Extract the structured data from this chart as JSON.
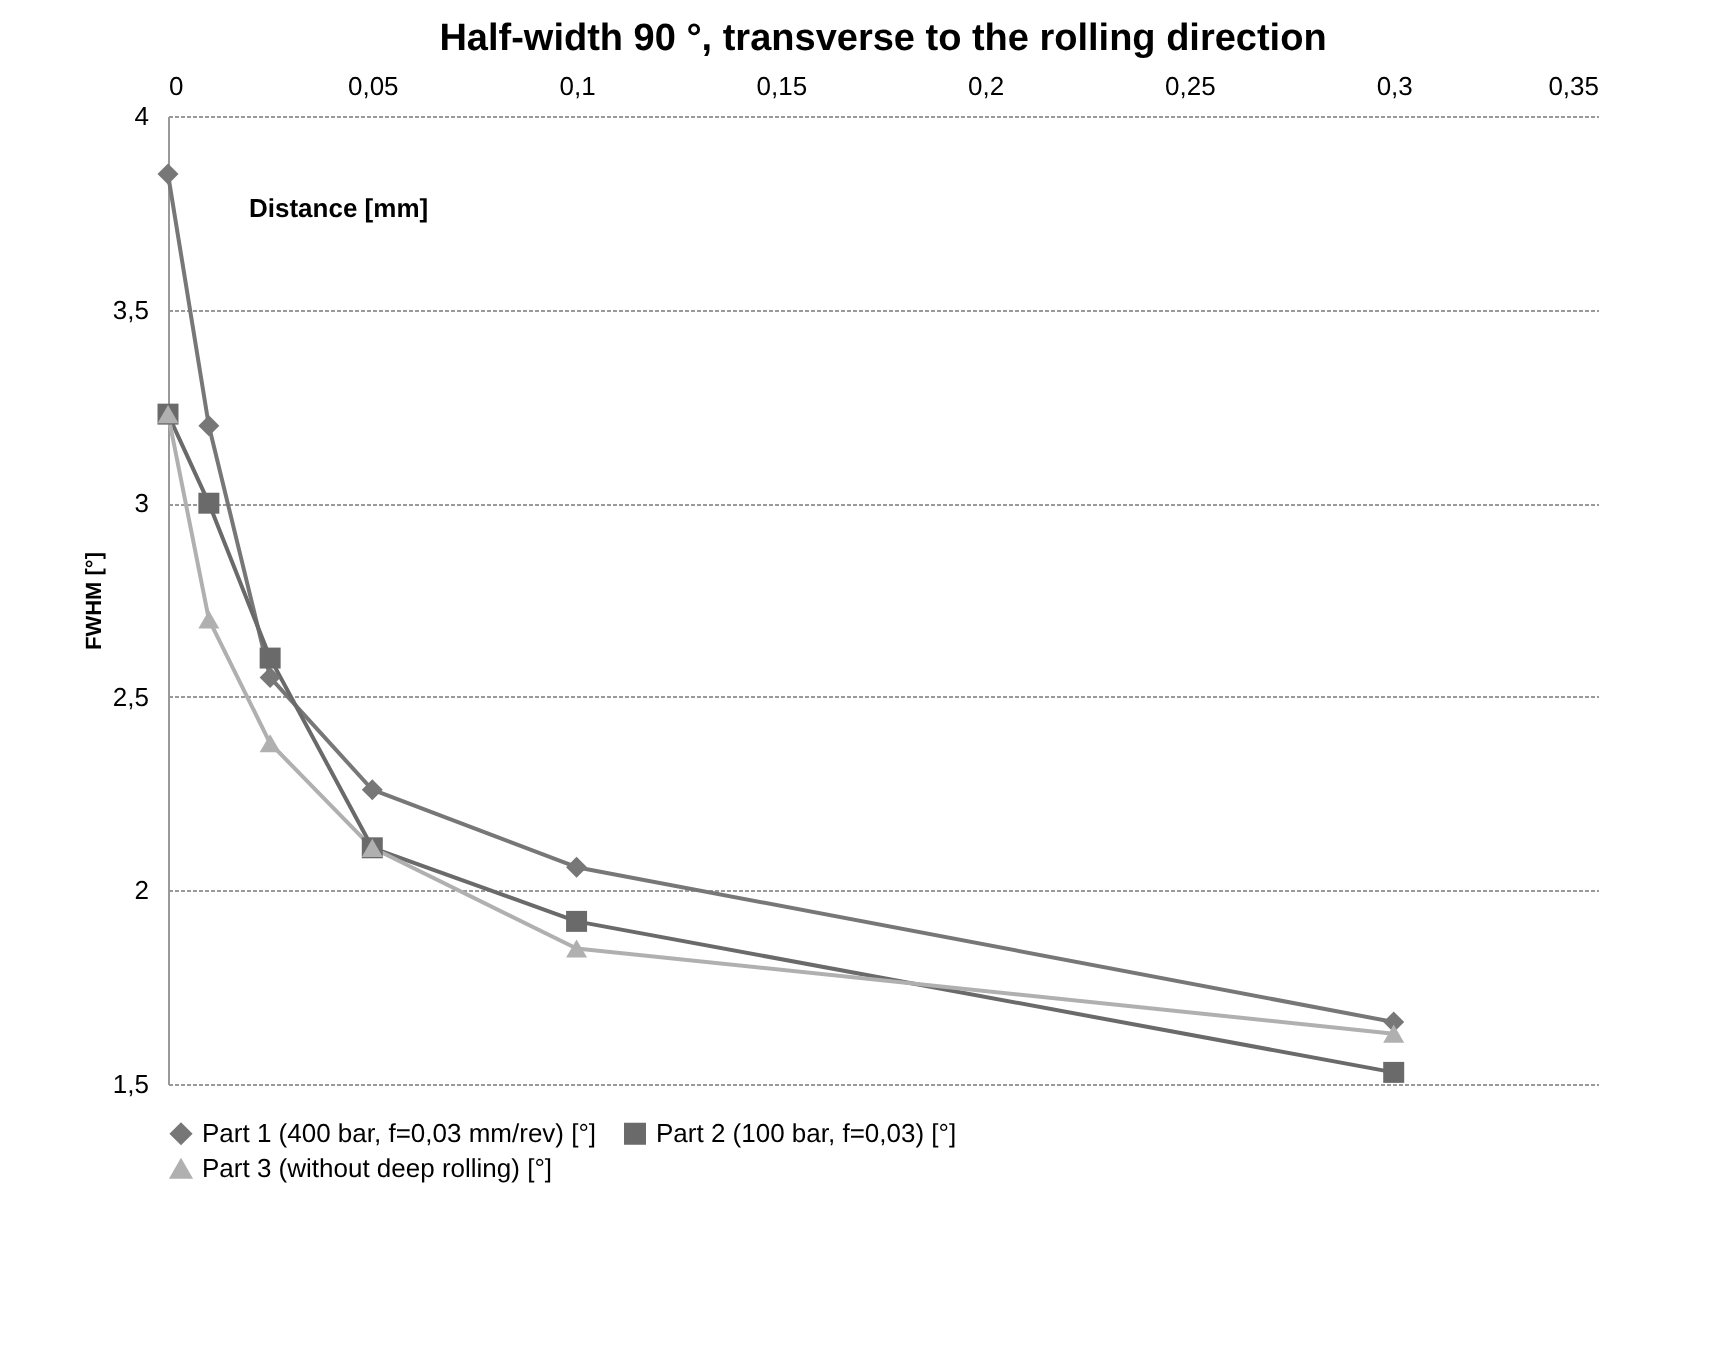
{
  "chart_data": {
    "type": "line",
    "title": "Half-width 90 °, transverse to the rolling direction",
    "xlabel": "Distance [mm]",
    "ylabel": "FWHM [°]",
    "x": [
      0,
      0.01,
      0.025,
      0.05,
      0.1,
      0.3
    ],
    "series": [
      {
        "name": "Part 1 (400 bar, f=0,03 mm/rev) [°]",
        "color": "#777777",
        "marker": "diamond",
        "values": [
          3.85,
          3.2,
          2.55,
          2.26,
          2.06,
          1.66
        ]
      },
      {
        "name": "Part 2 (100 bar, f=0,03) [°]",
        "color": "#6a6a6a",
        "marker": "square",
        "values": [
          3.23,
          3.0,
          2.6,
          2.11,
          1.92,
          1.53
        ]
      },
      {
        "name": "Part 3 (without deep rolling) [°]",
        "color": "#b0b0b0",
        "marker": "triangle",
        "values": [
          3.23,
          2.7,
          2.38,
          2.11,
          1.85,
          1.63
        ]
      }
    ],
    "xlim": [
      0,
      0.35
    ],
    "xticks": [
      0,
      {
        "value": 0.05,
        "label": "0,05"
      },
      {
        "value": 0.1,
        "label": "0,1"
      },
      {
        "value": 0.15,
        "label": "0,15"
      },
      {
        "value": 0.2,
        "label": "0,2"
      },
      {
        "value": 0.25,
        "label": "0,25"
      },
      {
        "value": 0.3,
        "label": "0,3"
      },
      {
        "value": 0.35,
        "label": "0,35"
      }
    ],
    "ylim": [
      1.5,
      4
    ],
    "yticks": [
      {
        "value": 1.5,
        "label": "1,5"
      },
      2,
      {
        "value": 2.5,
        "label": "2,5"
      },
      3,
      {
        "value": 3.5,
        "label": "3,5"
      },
      4
    ],
    "grid": "y",
    "legend": "bottom",
    "line_style": "solid"
  }
}
